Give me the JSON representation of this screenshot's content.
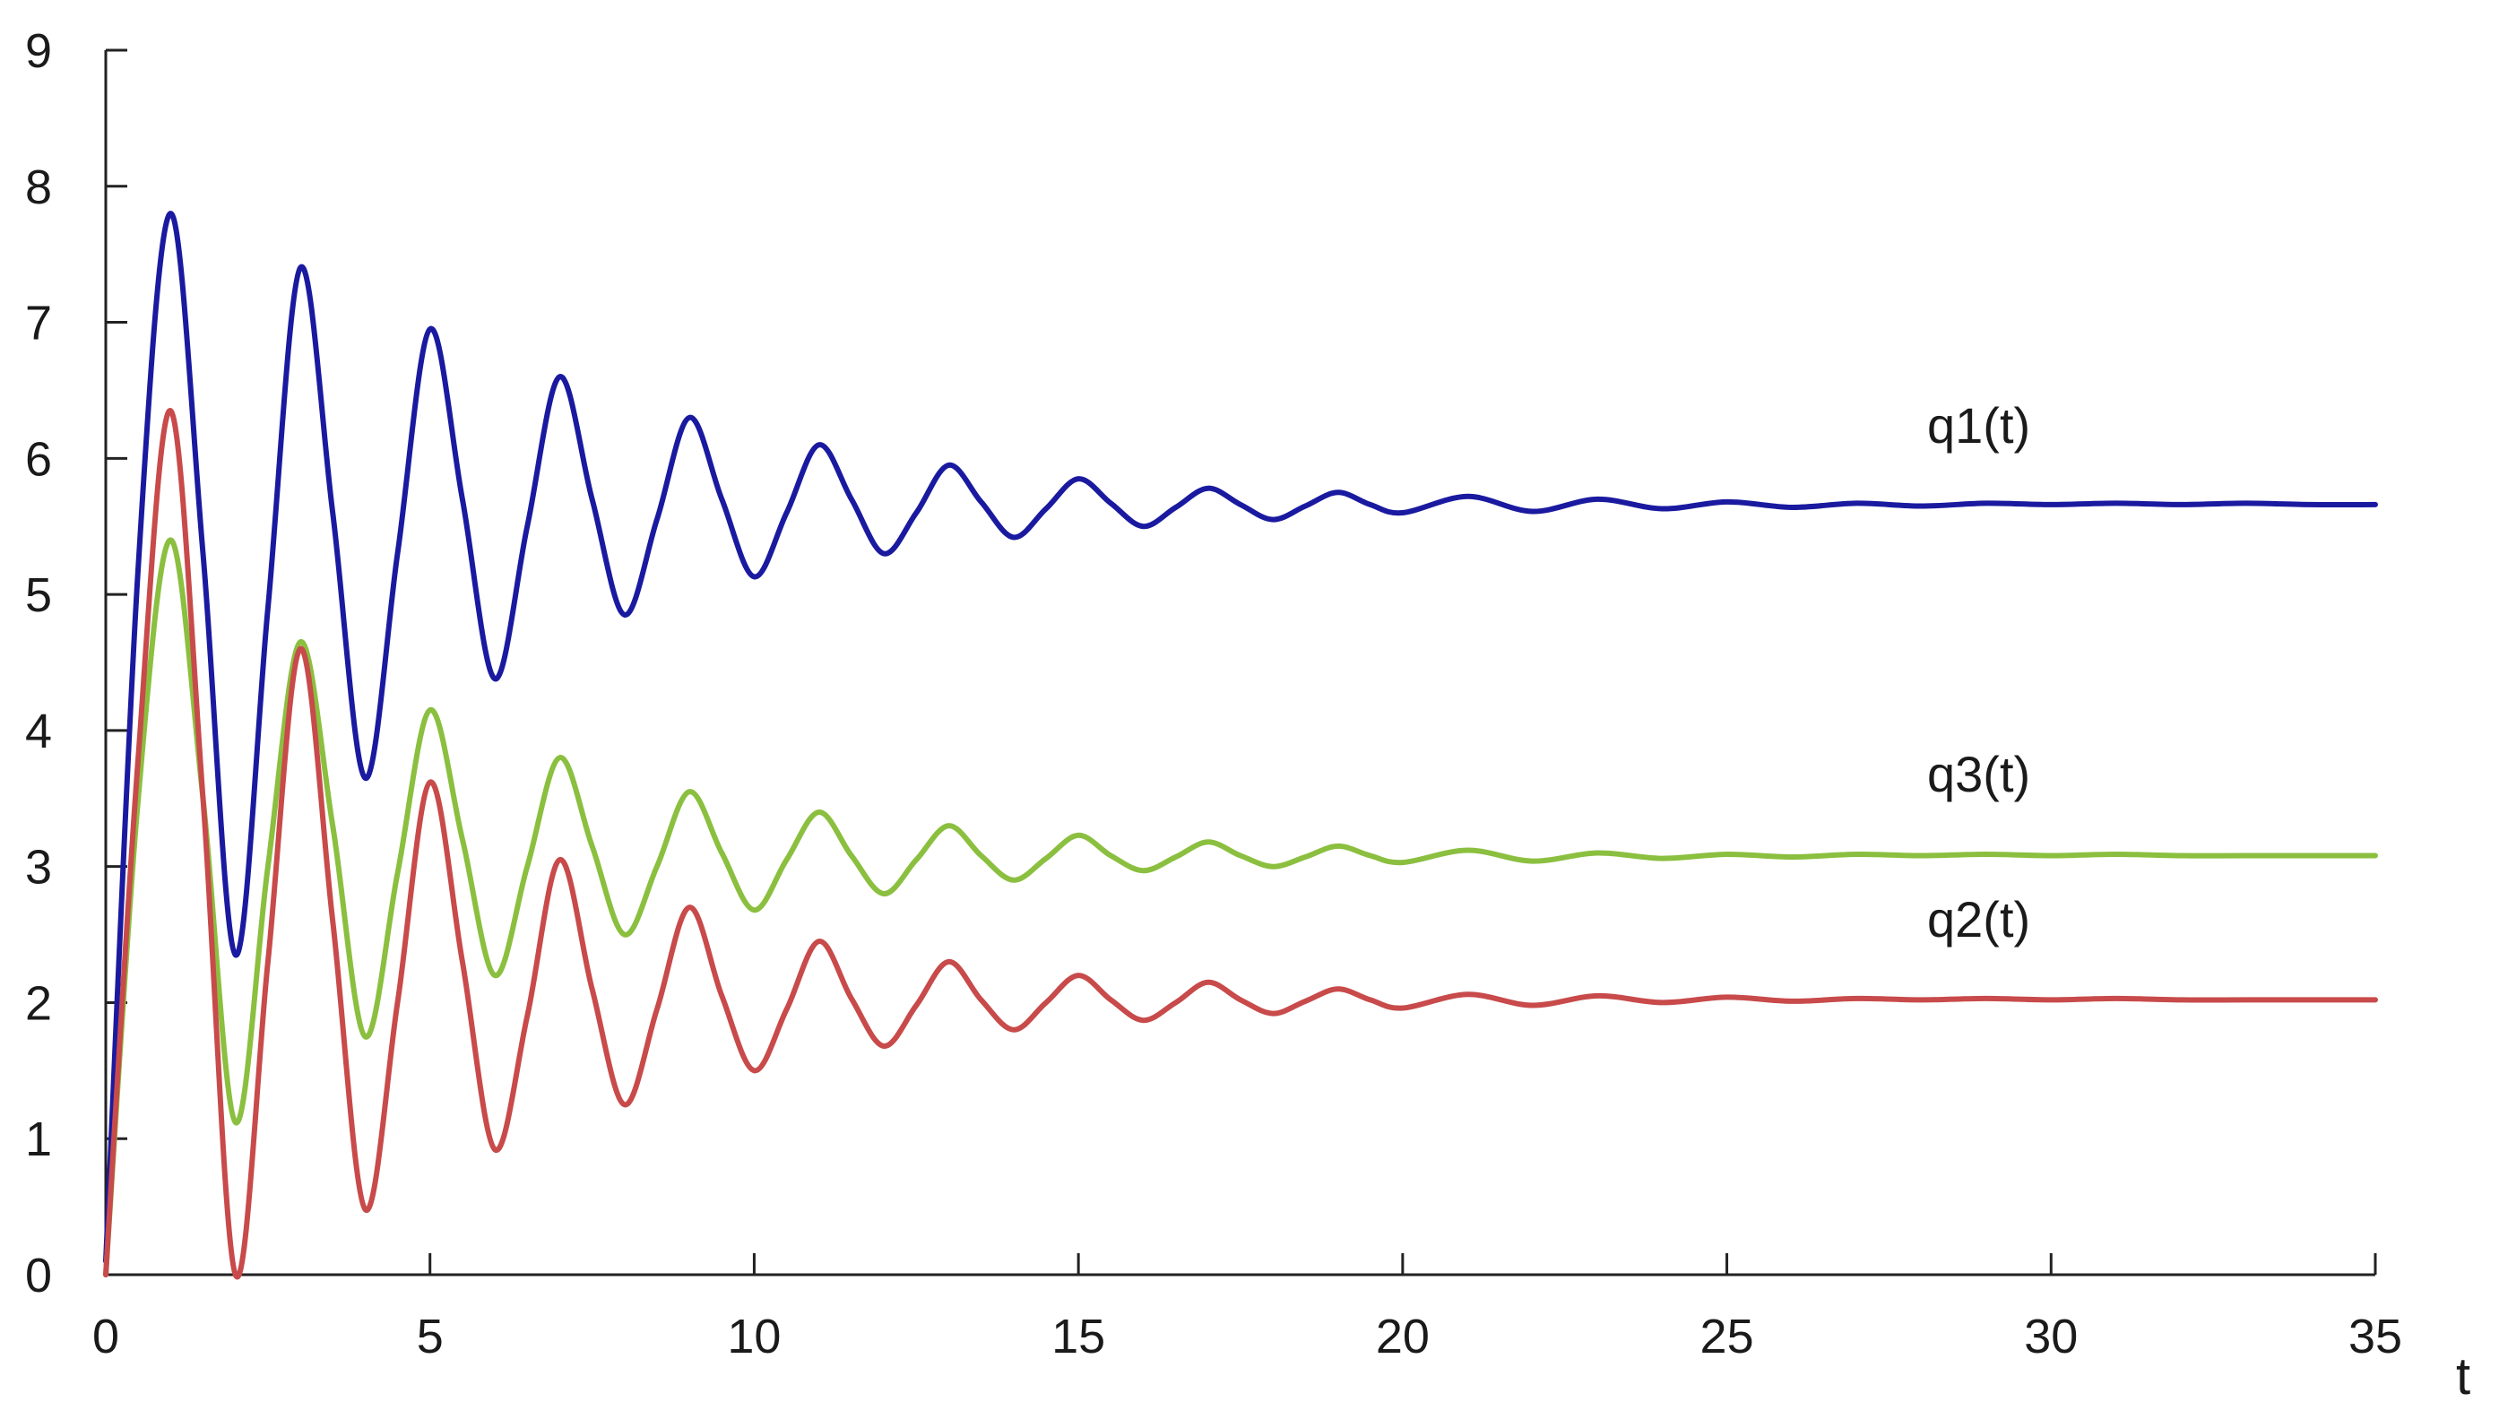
{
  "chart_data": {
    "type": "line",
    "title": "",
    "xlabel": "t",
    "ylabel": "",
    "xlim": [
      0,
      35
    ],
    "ylim": [
      0,
      9
    ],
    "x_ticks": [
      0,
      5,
      10,
      15,
      20,
      25,
      30,
      35
    ],
    "y_ticks": [
      0,
      1,
      2,
      3,
      4,
      5,
      6,
      7,
      8,
      9
    ],
    "grid": false,
    "legend": "none",
    "series": [
      {
        "name": "q1(t)",
        "color": "#1a1aa0",
        "x": [
          0,
          0.5,
          1,
          1.5,
          2,
          2.5,
          3,
          3.5,
          4,
          4.5,
          5,
          5.5,
          6,
          6.5,
          7,
          7.5,
          8,
          8.5,
          9,
          9.5,
          10,
          10.5,
          11,
          11.5,
          12,
          12.5,
          13,
          13.5,
          14,
          14.5,
          15,
          15.5,
          16,
          16.5,
          17,
          17.5,
          18,
          18.5,
          19,
          19.5,
          20,
          21,
          22,
          23,
          24,
          25,
          26,
          27,
          28,
          29,
          30,
          31,
          32,
          33,
          34,
          35
        ],
        "y": [
          0.1,
          5.2,
          7.8,
          5.3,
          2.35,
          4.9,
          7.4,
          5.6,
          3.65,
          5.3,
          6.95,
          5.7,
          4.38,
          5.5,
          6.6,
          5.7,
          4.85,
          5.55,
          6.3,
          5.7,
          5.13,
          5.6,
          6.1,
          5.7,
          5.3,
          5.6,
          5.95,
          5.68,
          5.42,
          5.63,
          5.85,
          5.67,
          5.5,
          5.64,
          5.78,
          5.66,
          5.55,
          5.65,
          5.75,
          5.66,
          5.6,
          5.72,
          5.61,
          5.7,
          5.63,
          5.68,
          5.64,
          5.67,
          5.65,
          5.67,
          5.66,
          5.67,
          5.66,
          5.67,
          5.66,
          5.66
        ]
      },
      {
        "name": "q3(t)",
        "color": "#8bbf3f",
        "x": [
          0,
          0.5,
          1,
          1.5,
          2,
          2.5,
          3,
          3.5,
          4,
          4.5,
          5,
          5.5,
          6,
          6.5,
          7,
          7.5,
          8,
          8.5,
          9,
          9.5,
          10,
          10.5,
          11,
          11.5,
          12,
          12.5,
          13,
          13.5,
          14,
          14.5,
          15,
          15.5,
          16,
          16.5,
          17,
          17.5,
          18,
          18.5,
          19,
          19.5,
          20,
          21,
          22,
          23,
          24,
          25,
          26,
          27,
          28,
          29,
          30,
          31,
          32,
          33,
          34,
          35
        ],
        "y": [
          0.0,
          3.5,
          5.4,
          3.5,
          1.12,
          3.0,
          4.65,
          3.3,
          1.75,
          2.95,
          4.15,
          3.2,
          2.2,
          3.0,
          3.8,
          3.15,
          2.5,
          3.0,
          3.55,
          3.1,
          2.68,
          3.05,
          3.4,
          3.08,
          2.8,
          3.05,
          3.3,
          3.08,
          2.9,
          3.06,
          3.23,
          3.08,
          2.97,
          3.07,
          3.18,
          3.08,
          3.0,
          3.07,
          3.15,
          3.08,
          3.03,
          3.12,
          3.04,
          3.1,
          3.06,
          3.09,
          3.07,
          3.09,
          3.08,
          3.09,
          3.08,
          3.09,
          3.08,
          3.08,
          3.08,
          3.08
        ]
      },
      {
        "name": "q2(t)",
        "color": "#c84a4a",
        "x": [
          0,
          0.5,
          1,
          1.5,
          2,
          2.5,
          3,
          3.5,
          4,
          4.5,
          5,
          5.5,
          6,
          6.5,
          7,
          7.5,
          8,
          8.5,
          9,
          9.5,
          10,
          10.5,
          11,
          11.5,
          12,
          12.5,
          13,
          13.5,
          14,
          14.5,
          15,
          15.5,
          16,
          16.5,
          17,
          17.5,
          18,
          18.5,
          19,
          19.5,
          20,
          21,
          22,
          23,
          24,
          25,
          26,
          27,
          28,
          29,
          30,
          31,
          32,
          33,
          34,
          35
        ],
        "y": [
          0.0,
          3.8,
          6.35,
          3.5,
          0.0,
          2.3,
          4.6,
          2.6,
          0.48,
          2.0,
          3.62,
          2.3,
          0.92,
          1.9,
          3.05,
          2.1,
          1.25,
          1.95,
          2.7,
          2.05,
          1.5,
          1.95,
          2.45,
          2.03,
          1.68,
          1.98,
          2.3,
          2.02,
          1.8,
          2.0,
          2.2,
          2.02,
          1.87,
          2.0,
          2.15,
          2.02,
          1.92,
          2.01,
          2.1,
          2.02,
          1.96,
          2.06,
          1.98,
          2.05,
          2.0,
          2.04,
          2.01,
          2.03,
          2.02,
          2.03,
          2.02,
          2.03,
          2.02,
          2.02,
          2.02,
          2.02
        ]
      }
    ]
  }
}
